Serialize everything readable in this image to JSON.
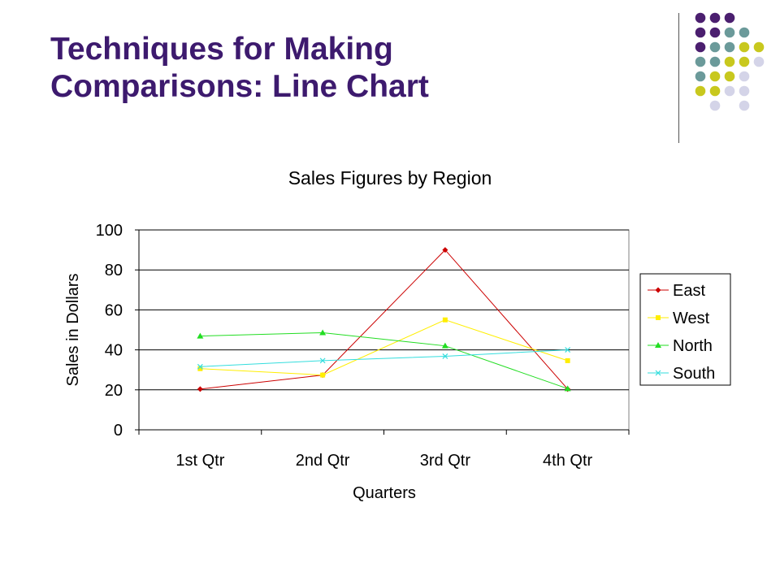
{
  "slide": {
    "title_line1": "Techniques for Making",
    "title_line2": "Comparisons: Line Chart"
  },
  "decoration": {
    "dot_colors": {
      "purple": "#4b1f6f",
      "teal": "#6b9a9a",
      "olive": "#c8c81e",
      "lavender": "#d4d4e8"
    }
  },
  "chart_data": {
    "type": "line",
    "title": "Sales Figures by Region",
    "xlabel": "Quarters",
    "ylabel": "Sales in Dollars",
    "categories": [
      "1st Qtr",
      "2nd Qtr",
      "3rd Qtr",
      "4th Qtr"
    ],
    "ylim": [
      0,
      100
    ],
    "yticks": [
      0,
      20,
      40,
      60,
      80,
      100
    ],
    "grid": true,
    "legend_position": "right",
    "series": [
      {
        "name": "East",
        "values": [
          20.4,
          27.4,
          90,
          20.4
        ],
        "color": "#cc0000",
        "marker": "diamond"
      },
      {
        "name": "West",
        "values": [
          30.6,
          27.4,
          55,
          34.6
        ],
        "color": "#ffee00",
        "marker": "square"
      },
      {
        "name": "North",
        "values": [
          46.9,
          48.6,
          42,
          20.6
        ],
        "color": "#22dd22",
        "marker": "triangle"
      },
      {
        "name": "South",
        "values": [
          31.6,
          34.6,
          36.8,
          40
        ],
        "color": "#33dddd",
        "marker": "x"
      }
    ]
  }
}
